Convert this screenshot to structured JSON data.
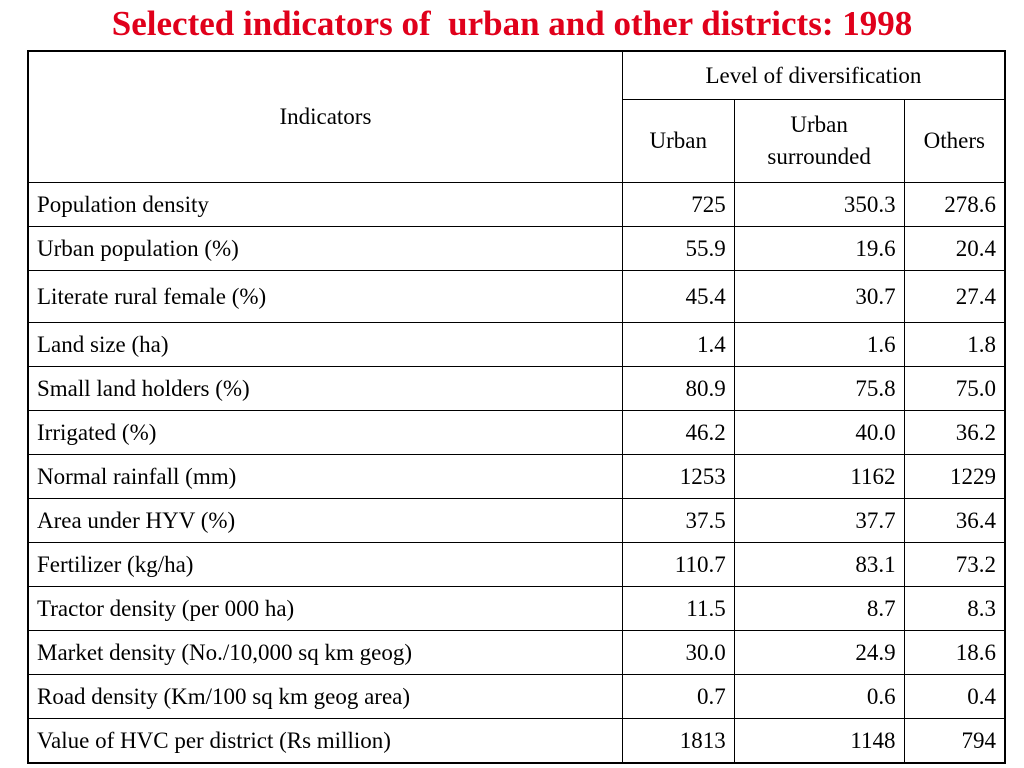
{
  "title": "Selected indicators of  urban and other districts: 1998",
  "table": {
    "header": {
      "indicators": "Indicators",
      "group": "Level  of diversification",
      "columns": [
        "Urban",
        "Urban surrounded",
        "Others"
      ]
    },
    "rows": [
      [
        "Population density",
        "725",
        "350.3",
        "278.6"
      ],
      [
        "Urban population (%)",
        "55.9",
        "19.6",
        "20.4"
      ],
      [
        "Literate rural female (%)",
        "45.4",
        "30.7",
        "27.4"
      ],
      [
        "Land size (ha)",
        "1.4",
        "1.6",
        "1.8"
      ],
      [
        "Small land holders (%)",
        "80.9",
        "75.8",
        "75.0"
      ],
      [
        "Irrigated (%)",
        "46.2",
        "40.0",
        "36.2"
      ],
      [
        "Normal rainfall (mm)",
        "1253",
        "1162",
        "1229"
      ],
      [
        "Area under HYV (%)",
        "37.5",
        "37.7",
        "36.4"
      ],
      [
        "Fertilizer (kg/ha)",
        "110.7",
        "83.1",
        "73.2"
      ],
      [
        "Tractor density (per 000 ha)",
        "11.5",
        "8.7",
        "8.3"
      ],
      [
        "Market density (No./10,000 sq km geog)",
        "30.0",
        "24.9",
        "18.6"
      ],
      [
        "Road density (Km/100 sq km geog area)",
        "0.7",
        "0.6",
        "0.4"
      ],
      [
        "Value of HVC per district (Rs million)",
        "1813",
        "1148",
        "794"
      ]
    ]
  }
}
